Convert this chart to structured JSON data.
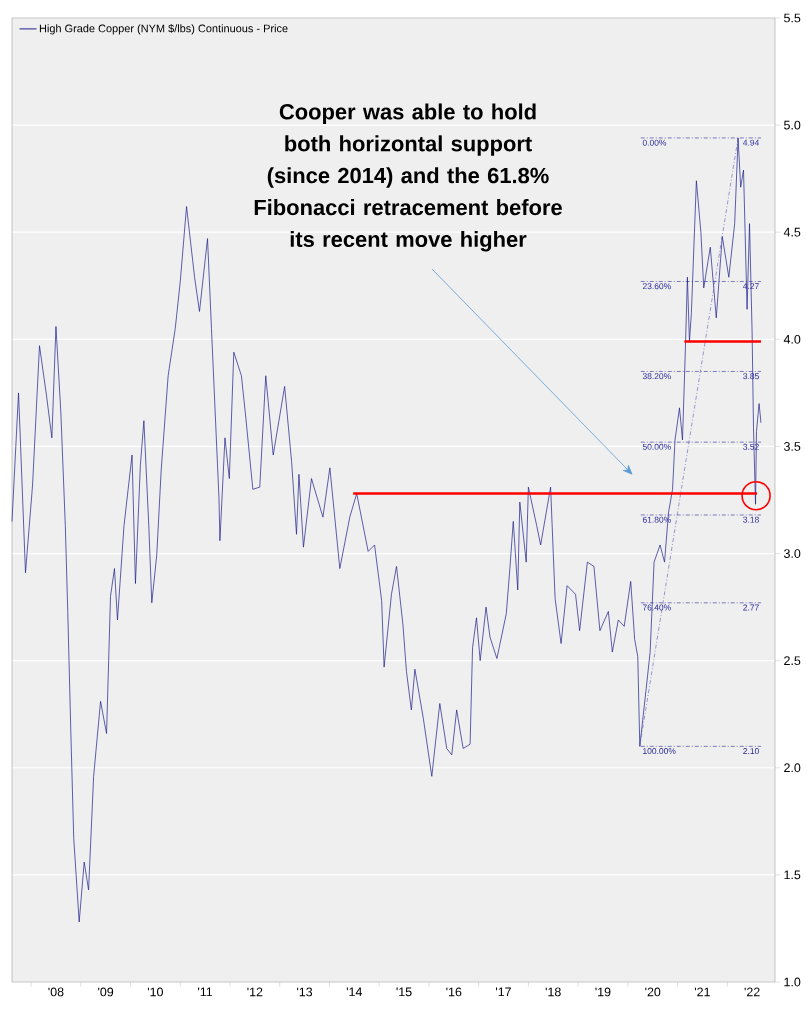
{
  "chart_data": {
    "type": "line",
    "xlim": [
      "2007-08-14",
      "2022-12-17"
    ],
    "ylim": [
      1.0,
      5.5
    ],
    "xticks": [
      {
        "value": "2008-01-01",
        "label": null
      },
      {
        "value": "2008-07-02",
        "label": "'08"
      },
      {
        "value": "2009-01-01",
        "label": null
      },
      {
        "value": "2009-07-02",
        "label": "'09"
      },
      {
        "value": "2010-01-01",
        "label": null
      },
      {
        "value": "2010-07-02",
        "label": "'10"
      },
      {
        "value": "2011-01-01",
        "label": null
      },
      {
        "value": "2011-07-02",
        "label": "'11"
      },
      {
        "value": "2012-01-01",
        "label": null
      },
      {
        "value": "2012-07-02",
        "label": "'12"
      },
      {
        "value": "2013-01-01",
        "label": null
      },
      {
        "value": "2013-07-02",
        "label": "'13"
      },
      {
        "value": "2014-01-01",
        "label": null
      },
      {
        "value": "2014-07-02",
        "label": "'14"
      },
      {
        "value": "2015-01-01",
        "label": null
      },
      {
        "value": "2015-07-02",
        "label": "'15"
      },
      {
        "value": "2016-01-01",
        "label": null
      },
      {
        "value": "2016-07-02",
        "label": "'16"
      },
      {
        "value": "2017-01-01",
        "label": null
      },
      {
        "value": "2017-07-02",
        "label": "'17"
      },
      {
        "value": "2018-01-01",
        "label": null
      },
      {
        "value": "2018-07-02",
        "label": "'18"
      },
      {
        "value": "2019-01-01",
        "label": null
      },
      {
        "value": "2019-07-02",
        "label": "'19"
      },
      {
        "value": "2020-01-01",
        "label": null
      },
      {
        "value": "2020-07-02",
        "label": "'20"
      },
      {
        "value": "2021-01-01",
        "label": null
      },
      {
        "value": "2021-07-02",
        "label": "'21"
      },
      {
        "value": "2022-01-01",
        "label": null
      },
      {
        "value": "2022-07-02",
        "label": "'22"
      }
    ],
    "yticks": [
      {
        "value": 1.0,
        "label": "1.0"
      },
      {
        "value": 1.5,
        "label": "1.5"
      },
      {
        "value": 2.0,
        "label": "2.0"
      },
      {
        "value": 2.5,
        "label": "2.5"
      },
      {
        "value": 3.0,
        "label": "3.0"
      },
      {
        "value": 3.5,
        "label": "3.5"
      },
      {
        "value": 4.0,
        "label": "4.0"
      },
      {
        "value": 4.5,
        "label": "4.5"
      },
      {
        "value": 5.0,
        "label": "5.0"
      },
      {
        "value": 5.5,
        "label": "5.5"
      }
    ],
    "grid": "y",
    "legend": "top left",
    "series": [
      {
        "name": "High Grade Copper (NYM $/lbs) Continuous - Price",
        "color": "#1c1c8a",
        "x": [
          "2007-08-14",
          "2007-10-01",
          "2007-11-21",
          "2008-01-12",
          "2008-03-03",
          "2008-04-23",
          "2008-06-02",
          "2008-07-02",
          "2008-08-07",
          "2008-09-09",
          "2008-09-27",
          "2008-10-19",
          "2008-11-10",
          "2008-12-20",
          "2009-01-26",
          "2009-02-27",
          "2009-04-05",
          "2009-05-26",
          "2009-07-09",
          "2009-08-07",
          "2009-09-05",
          "2009-09-27",
          "2009-11-14",
          "2010-01-12",
          "2010-02-06",
          "2010-03-14",
          "2010-04-09",
          "2010-05-15",
          "2010-06-06",
          "2010-07-12",
          "2010-08-14",
          "2010-10-04",
          "2010-11-25",
          "2011-01-01",
          "2011-02-16",
          "2011-04-16",
          "2011-05-22",
          "2011-07-20",
          "2011-08-18",
          "2011-10-12",
          "2011-10-19",
          "2011-11-25",
          "2011-12-27",
          "2012-01-29",
          "2012-03-25",
          "2012-04-27",
          "2012-06-17",
          "2012-08-07",
          "2012-09-20",
          "2012-11-14",
          "2013-02-06",
          "2013-03-29",
          "2013-05-04",
          "2013-05-22",
          "2013-06-24",
          "2013-08-22",
          "2013-11-14",
          "2014-01-04",
          "2014-03-18",
          "2014-05-30",
          "2014-07-20",
          "2014-10-12",
          "2014-11-28",
          "2015-01-19",
          "2015-02-06",
          "2015-04-01",
          "2015-05-08",
          "2015-06-24",
          "2015-07-20",
          "2015-08-25",
          "2015-09-20",
          "2015-11-21",
          "2016-01-22",
          "2016-03-21",
          "2016-05-11",
          "2016-06-17",
          "2016-07-23",
          "2016-09-09",
          "2016-10-30",
          "2016-11-17",
          "2016-12-16",
          "2017-01-12",
          "2017-02-24",
          "2017-03-25",
          "2017-05-15",
          "2017-07-23",
          "2017-08-18",
          "2017-09-12",
          "2017-10-15",
          "2017-10-30",
          "2017-12-16",
          "2018-01-01",
          "2018-03-03",
          "2018-04-01",
          "2018-06-13",
          "2018-07-16",
          "2018-08-29",
          "2018-10-12",
          "2018-12-13",
          "2019-01-12",
          "2019-03-10",
          "2019-04-27",
          "2019-06-10",
          "2019-08-11",
          "2019-09-09",
          "2019-10-23",
          "2019-12-05",
          "2020-01-22",
          "2020-02-20",
          "2020-03-14",
          "2020-03-29",
          "2020-05-15",
          "2020-06-13",
          "2020-07-12",
          "2020-08-25",
          "2020-09-27",
          "2020-10-26",
          "2020-11-25",
          "2020-12-13",
          "2021-01-15",
          "2021-02-06",
          "2021-02-27",
          "2021-03-14",
          "2021-03-29",
          "2021-04-12",
          "2021-05-19",
          "2021-06-21",
          "2021-07-12",
          "2021-08-29",
          "2021-10-12",
          "2021-11-25",
          "2022-01-12",
          "2022-02-24",
          "2022-03-21",
          "2022-04-09",
          "2022-04-30",
          "2022-05-26",
          "2022-06-13",
          "2022-07-02",
          "2022-07-12",
          "2022-07-27",
          "2022-08-03",
          "2022-08-22",
          "2022-09-05"
        ],
        "values": [
          3.15,
          3.75,
          2.91,
          3.32,
          3.97,
          3.74,
          3.54,
          4.06,
          3.66,
          3.13,
          2.73,
          2.18,
          1.67,
          1.28,
          1.56,
          1.43,
          1.96,
          2.31,
          2.16,
          2.8,
          2.93,
          2.69,
          3.13,
          3.46,
          2.86,
          3.41,
          3.62,
          3.13,
          2.77,
          2.99,
          3.39,
          3.83,
          4.05,
          4.27,
          4.62,
          4.29,
          4.13,
          4.47,
          4.05,
          3.26,
          3.06,
          3.54,
          3.35,
          3.94,
          3.83,
          3.63,
          3.3,
          3.31,
          3.83,
          3.46,
          3.78,
          3.43,
          3.09,
          3.37,
          3.03,
          3.35,
          3.17,
          3.4,
          2.93,
          3.17,
          3.28,
          3.01,
          3.04,
          2.78,
          2.47,
          2.81,
          2.94,
          2.67,
          2.45,
          2.27,
          2.46,
          2.23,
          1.96,
          2.3,
          2.09,
          2.06,
          2.27,
          2.09,
          2.11,
          2.56,
          2.7,
          2.5,
          2.75,
          2.61,
          2.51,
          2.72,
          2.93,
          3.15,
          2.83,
          3.24,
          2.96,
          3.31,
          3.13,
          3.04,
          3.31,
          2.79,
          2.58,
          2.85,
          2.81,
          2.64,
          2.96,
          2.94,
          2.64,
          2.73,
          2.54,
          2.69,
          2.66,
          2.87,
          2.6,
          2.52,
          2.1,
          2.37,
          2.54,
          2.96,
          3.04,
          2.96,
          3.19,
          3.3,
          3.53,
          3.68,
          3.53,
          3.95,
          4.29,
          3.99,
          4.12,
          4.74,
          4.5,
          4.24,
          4.43,
          4.1,
          4.48,
          4.29,
          4.54,
          4.94,
          4.71,
          4.79,
          4.14,
          4.54,
          4.03,
          3.59,
          3.23,
          3.57,
          3.7,
          3.61
        ]
      },
      {
        "color": "#2a2a9c",
        "line_style": "dashed",
        "x": [
          "2020-04-05",
          "2022-09-05"
        ],
        "values": [
          4.94,
          4.94
        ]
      },
      {
        "color": "#2a2a9c",
        "line_style": "dashed",
        "x": [
          "2020-04-05",
          "2022-09-05"
        ],
        "values": [
          4.27,
          4.27
        ]
      },
      {
        "color": "#2a2a9c",
        "line_style": "dashed",
        "x": [
          "2020-04-05",
          "2022-09-05"
        ],
        "values": [
          3.85,
          3.85
        ]
      },
      {
        "color": "#2a2a9c",
        "line_style": "dashed",
        "x": [
          "2020-04-05",
          "2022-09-05"
        ],
        "values": [
          3.52,
          3.52
        ]
      },
      {
        "color": "#2a2a9c",
        "line_style": "dashed",
        "x": [
          "2020-04-05",
          "2022-09-05"
        ],
        "values": [
          3.18,
          3.18
        ]
      },
      {
        "color": "#2a2a9c",
        "line_style": "dashed",
        "x": [
          "2020-04-05",
          "2022-09-05"
        ],
        "values": [
          2.77,
          2.77
        ]
      },
      {
        "color": "#2a2a9c",
        "line_style": "dashed",
        "x": [
          "2020-04-05",
          "2022-09-05"
        ],
        "values": [
          2.1,
          2.1
        ]
      },
      {
        "color": "#5a5ab4",
        "line_style": "dashed",
        "x": [
          "2020-03-29",
          "2022-03-21"
        ],
        "values": [
          2.1,
          4.94
        ]
      },
      {
        "color": "#ff0000",
        "x": [
          "2014-06-24",
          "2022-08-07"
        ],
        "values": [
          3.28,
          3.28
        ]
      },
      {
        "color": "#ff0000",
        "x": [
          "2021-02-20",
          "2022-09-05"
        ],
        "values": [
          3.99,
          3.99
        ]
      },
      {
        "type": "scatter",
        "marker": "circle",
        "color": "#ff0000",
        "x": [
          "2022-07-31"
        ],
        "values": [
          3.27
        ]
      }
    ],
    "annotations": [
      "Cooper was able to hold both horizontal support (since 2014) and the 61.8% Fibonacci retracement before its recent move higher",
      {
        "text": "0.00%",
        "x": "2020-04-05",
        "y": 4.94
      },
      {
        "text": "23.60%",
        "x": "2020-04-05",
        "y": 4.27
      },
      {
        "text": "38.20%",
        "x": "2020-04-05",
        "y": 3.85
      },
      {
        "text": "50.00%",
        "x": "2020-04-05",
        "y": 3.52
      },
      {
        "text": "61.80%",
        "x": "2020-04-05",
        "y": 3.18
      },
      {
        "text": "76.40%",
        "x": "2020-04-05",
        "y": 2.77
      },
      {
        "text": "100.00%",
        "x": "2020-04-05",
        "y": 2.1
      },
      {
        "text": "4.94",
        "x": "2022-09-05",
        "y": 4.94
      },
      {
        "text": "4.27",
        "x": "2022-09-05",
        "y": 4.27
      },
      {
        "text": "3.85",
        "x": "2022-09-05",
        "y": 3.85
      },
      {
        "text": "3.52",
        "x": "2022-09-05",
        "y": 3.52
      },
      {
        "text": "3.18",
        "x": "2022-09-05",
        "y": 3.18
      },
      {
        "text": "2.77",
        "x": "2022-09-05",
        "y": 2.77
      },
      {
        "text": "2.10",
        "x": "2022-09-05",
        "y": 2.1
      }
    ]
  }
}
